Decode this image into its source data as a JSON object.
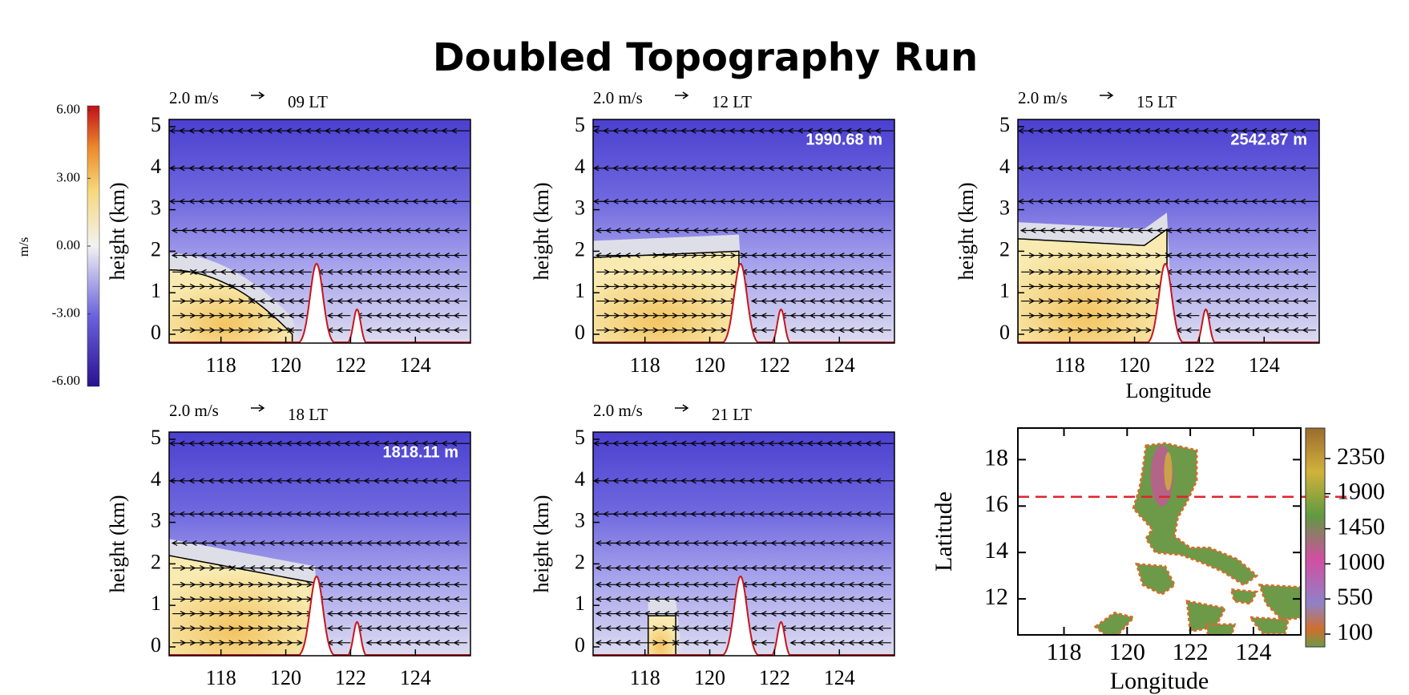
{
  "title": "Doubled Topography Run",
  "colorbar": {
    "unit": "m/s",
    "ticks": [
      {
        "value": 6,
        "label": "6.00"
      },
      {
        "value": 3,
        "label": "3.00"
      },
      {
        "value": 0,
        "label": "0.00"
      },
      {
        "value": -3,
        "label": "-3.00"
      },
      {
        "value": -6,
        "label": "-6.00"
      }
    ]
  },
  "panels": [
    {
      "vector_scale": "2.0 m/s",
      "time": "09 LT",
      "ylabel": "height (km)",
      "yticks": [
        0,
        1,
        2,
        3,
        4,
        5
      ],
      "xticks": [
        118,
        120,
        122,
        124
      ]
    },
    {
      "vector_scale": "2.0 m/s",
      "time": "12 LT",
      "annotation": "1990.68 m",
      "ylabel": "height (km)",
      "yticks": [
        0,
        1,
        2,
        3,
        4,
        5
      ],
      "xticks": [
        118,
        120,
        122,
        124
      ]
    },
    {
      "vector_scale": "2.0 m/s",
      "time": "15 LT",
      "annotation": "2542.87 m",
      "ylabel": "height (km)",
      "yticks": [
        0,
        1,
        2,
        3,
        4,
        5
      ],
      "xticks": [
        118,
        120,
        122,
        124
      ],
      "xlabel": "Longitude"
    },
    {
      "vector_scale": "2.0 m/s",
      "time": "18 LT",
      "annotation": "1818.11 m",
      "ylabel": "height (km)",
      "yticks": [
        0,
        1,
        2,
        3,
        4,
        5
      ],
      "xticks": [
        118,
        120,
        122,
        124
      ]
    },
    {
      "vector_scale": "2.0 m/s",
      "time": "21 LT",
      "ylabel": "height (km)",
      "yticks": [
        0,
        1,
        2,
        3,
        4,
        5
      ],
      "xticks": [
        118,
        120,
        122,
        124
      ]
    }
  ],
  "map": {
    "ylabel": "Latitude",
    "xlabel": "Longitude",
    "yticks": [
      12,
      14,
      16,
      18
    ],
    "xticks": [
      118,
      120,
      122,
      124
    ],
    "colorbar_ticks": [
      2350,
      1900,
      1450,
      1000,
      550,
      100
    ]
  }
}
